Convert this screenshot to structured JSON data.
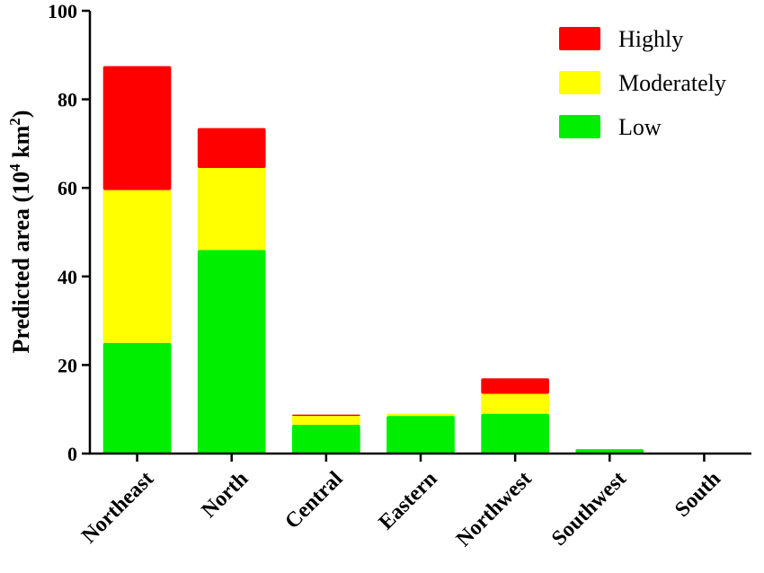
{
  "chart_data": {
    "type": "bar",
    "stacked": true,
    "categories": [
      "Northeast",
      "North",
      "Central",
      "Eastern",
      "Northwest",
      "Southwest",
      "South"
    ],
    "series": [
      {
        "name": "Low",
        "color": "#00ee00",
        "values": [
          25,
          46,
          6.5,
          8.5,
          9,
          1,
          0
        ]
      },
      {
        "name": "Moderately",
        "color": "#ffff00",
        "values": [
          34.5,
          18.5,
          2,
          0.5,
          4.5,
          0,
          0
        ]
      },
      {
        "name": "Highly",
        "color": "#ff0000",
        "values": [
          28,
          9,
          0.3,
          0,
          3.5,
          0,
          0
        ]
      }
    ],
    "ylabel_main": "Predicted area (10",
    "ylabel_sup1": "4",
    "ylabel_mid": " km",
    "ylabel_sup2": "2",
    "ylabel_end": ")",
    "ylim": [
      0,
      100
    ],
    "yticks": [
      0,
      20,
      40,
      60,
      80,
      100
    ],
    "legend_order": [
      "Highly",
      "Moderately",
      "Low"
    ],
    "legend_position": "top-right",
    "grid": false
  }
}
